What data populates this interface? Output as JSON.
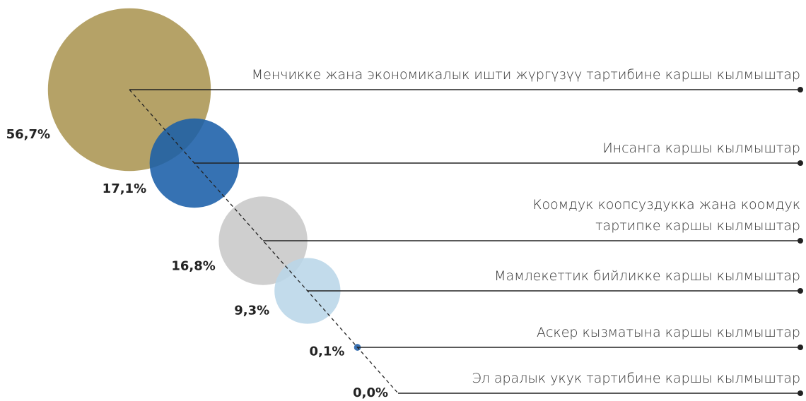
{
  "chart_data": {
    "type": "bubble",
    "categories": [
      "Менчикке жана экономикалык ишти жүргүзүү тартибине каршы кылмыштар",
      "Инсанга каршы кылмыштар",
      "Коомдук коопсуздукка жана коомдук тартипке каршы кылмыштар",
      "Мамлекеттик бийликке каршы кылмыштар",
      "Аскер кызматына каршы кылмыштар",
      "Эл аралык укук тартибине каршы кылмыштар"
    ],
    "values": [
      56.7,
      17.1,
      16.8,
      9.3,
      0.1,
      0.0
    ],
    "value_labels": [
      "56,7%",
      "17,1%",
      "16,8%",
      "9,3%",
      "0,1%",
      "0,0%"
    ],
    "colors": [
      "#b5a267",
      "#1a5fa8",
      "#c8c8c8",
      "#b9d6e8",
      "#1f5ea8",
      "#1f5ea8"
    ]
  }
}
